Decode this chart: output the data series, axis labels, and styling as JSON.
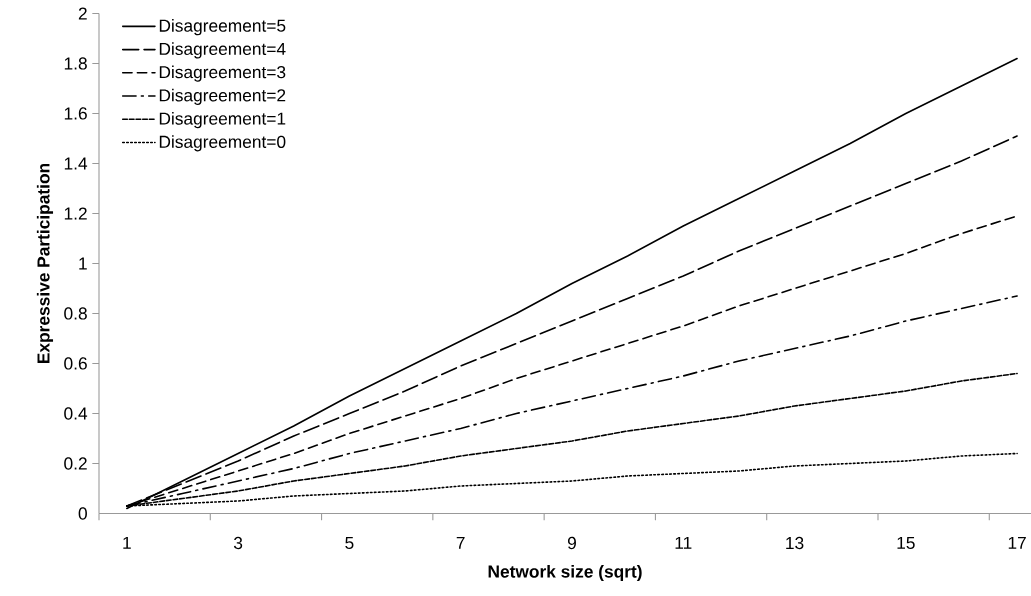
{
  "chart_data": {
    "type": "line",
    "xlabel": "Network  size (sqrt)",
    "ylabel": "Expressive Participation",
    "x": [
      1,
      2,
      3,
      4,
      5,
      6,
      7,
      8,
      9,
      10,
      11,
      12,
      13,
      14,
      15,
      16,
      17
    ],
    "xlim": [
      0.5,
      17.25
    ],
    "xticks": [
      {
        "value": 0.5,
        "label": null
      },
      1,
      {
        "value": 2.5,
        "label": null
      },
      3,
      {
        "value": 4.5,
        "label": null
      },
      5,
      {
        "value": 6.5,
        "label": null
      },
      7,
      {
        "value": 8.5,
        "label": null
      },
      9,
      {
        "value": 10.5,
        "label": null
      },
      11,
      {
        "value": 12.5,
        "label": null
      },
      13,
      {
        "value": 14.5,
        "label": null
      },
      15,
      {
        "value": 16.5,
        "label": null
      },
      17
    ],
    "ylim": [
      0,
      2
    ],
    "yticks": [
      0,
      0.2,
      0.4,
      0.6,
      0.8,
      1,
      1.2,
      1.4,
      1.6,
      1.8,
      2
    ],
    "grid": false,
    "legend": "top left",
    "marker": "none",
    "series": [
      {
        "name": "Disagreement=5",
        "color": "#000000",
        "line_style": "solid",
        "values": [
          0.02,
          0.13,
          0.24,
          0.35,
          0.47,
          0.58,
          0.69,
          0.8,
          0.92,
          1.03,
          1.15,
          1.26,
          1.37,
          1.48,
          1.6,
          1.71,
          1.82
        ]
      },
      {
        "name": "Disagreement=4",
        "color": "#000000",
        "line_style": "long dashed",
        "values": [
          0.03,
          0.12,
          0.21,
          0.31,
          0.4,
          0.49,
          0.59,
          0.68,
          0.77,
          0.86,
          0.95,
          1.05,
          1.14,
          1.23,
          1.32,
          1.41,
          1.51
        ]
      },
      {
        "name": "Disagreement=3",
        "color": "#000000",
        "line_style": "dashed",
        "values": [
          0.03,
          0.1,
          0.17,
          0.24,
          0.32,
          0.39,
          0.46,
          0.54,
          0.61,
          0.68,
          0.75,
          0.83,
          0.9,
          0.97,
          1.04,
          1.12,
          1.19
        ]
      },
      {
        "name": "Disagreement=2",
        "color": "#000000",
        "line_style": "dash dot",
        "values": [
          0.03,
          0.08,
          0.13,
          0.18,
          0.24,
          0.29,
          0.34,
          0.4,
          0.45,
          0.5,
          0.55,
          0.61,
          0.66,
          0.71,
          0.77,
          0.82,
          0.87
        ]
      },
      {
        "name": "Disagreement=1",
        "color": "#000000",
        "line_style": "short dashed",
        "values": [
          0.03,
          0.06,
          0.09,
          0.13,
          0.16,
          0.19,
          0.23,
          0.26,
          0.29,
          0.33,
          0.36,
          0.39,
          0.43,
          0.46,
          0.49,
          0.53,
          0.56
        ]
      },
      {
        "name": "Disagreement=0",
        "color": "#000000",
        "line_style": "dotted",
        "values": [
          0.03,
          0.04,
          0.05,
          0.07,
          0.08,
          0.09,
          0.11,
          0.12,
          0.13,
          0.15,
          0.16,
          0.17,
          0.19,
          0.2,
          0.21,
          0.23,
          0.24
        ]
      }
    ]
  }
}
